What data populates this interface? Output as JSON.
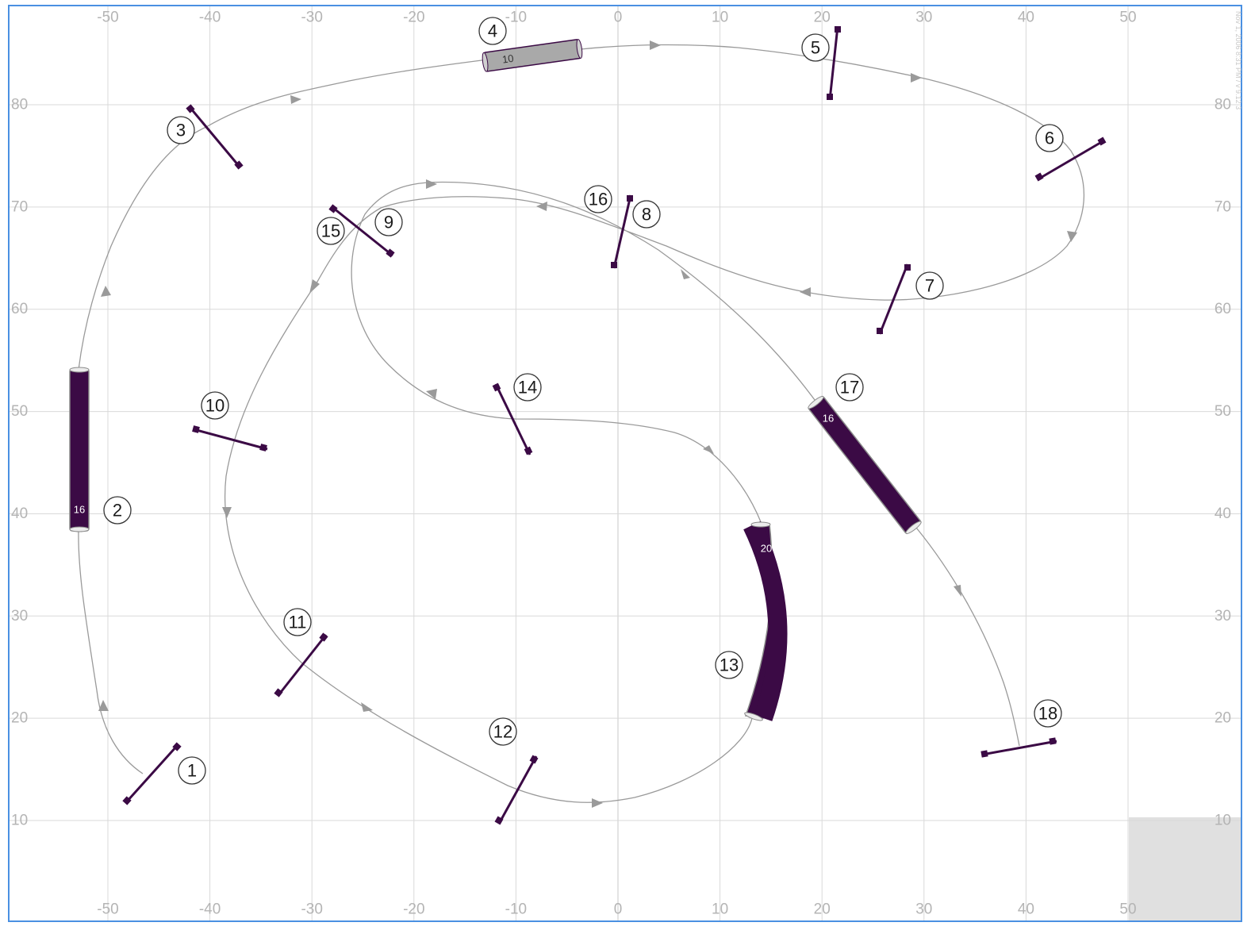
{
  "course": {
    "x_ticks": [
      -50,
      -40,
      -30,
      -20,
      -10,
      0,
      10,
      20,
      30,
      40,
      50
    ],
    "y_ticks": [
      80,
      70,
      60,
      50,
      40,
      30,
      20,
      10
    ],
    "x_range": [
      -52.5,
      52.5
    ],
    "y_range": [
      1.5,
      88
    ],
    "grid": true,
    "timestamp": "Nov 1, 2006 8:31 PM / v 9.12.3"
  },
  "obstacles": [
    {
      "type": "jump",
      "number": "1",
      "x": -44.5,
      "y": 14.5
    },
    {
      "type": "tunnel",
      "number": "2",
      "label": "16",
      "x": -52.7,
      "y": 46
    },
    {
      "type": "jump",
      "number": "3",
      "x": -39.5,
      "y": 76
    },
    {
      "type": "tunnel",
      "number": "4",
      "label": "10",
      "x": -8.5,
      "y": 85
    },
    {
      "type": "jump",
      "number": "5",
      "x": 21,
      "y": 84
    },
    {
      "type": "jump",
      "number": "6",
      "x": 44.5,
      "y": 74.5
    },
    {
      "type": "jump",
      "number": "7",
      "x": 27,
      "y": 61
    },
    {
      "type": "jump",
      "number": "8",
      "x": 0.5,
      "y": 67.5
    },
    {
      "type": "jump",
      "number": "9",
      "x": -25,
      "y": 67.5
    },
    {
      "type": "jump",
      "number": "10",
      "x": -37,
      "y": 46.5
    },
    {
      "type": "jump",
      "number": "11",
      "x": -31,
      "y": 25
    },
    {
      "type": "jump",
      "number": "12",
      "x": -10,
      "y": 13
    },
    {
      "type": "tunnel",
      "number": "13",
      "label": "20",
      "x": 15.5,
      "y": 30
    },
    {
      "type": "jump",
      "number": "14",
      "x": -10,
      "y": 49
    },
    {
      "type": "jump",
      "number": "15",
      "x": -25,
      "y": 67.5
    },
    {
      "type": "jump",
      "number": "16",
      "x": 0.5,
      "y": 67.5
    },
    {
      "type": "tunnel",
      "number": "17",
      "label": "16",
      "x": 24.5,
      "y": 43.5
    },
    {
      "type": "jump",
      "number": "18",
      "x": 39,
      "y": 17
    }
  ],
  "colors": {
    "obstacle": "#3b0a45",
    "path": "#9a9a9a",
    "grid": "#d9d9d9",
    "tick_label": "#b4b4b4",
    "frame_border": "#4a90e2",
    "tunnel_light": "#a9a9a9"
  }
}
